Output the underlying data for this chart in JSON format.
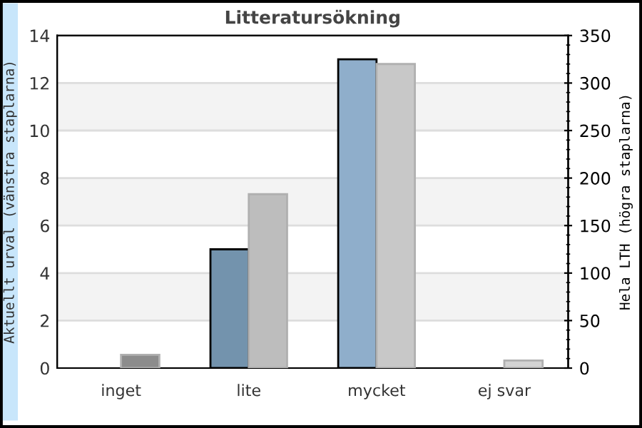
{
  "chart_data": {
    "type": "bar",
    "title": "Litteratursökning",
    "categories": [
      "inget",
      "lite",
      "mycket",
      "ej svar"
    ],
    "ylabel": "Aktuellt urval (vänstra staplarna)",
    "y2label": "Hela LTH (högra staplarna)",
    "series": [
      {
        "axis": "y",
        "colors": [
          "#7393ad",
          "#7393ad",
          "#8faecb",
          "#8faecb"
        ],
        "values": [
          0,
          5,
          13,
          0
        ]
      },
      {
        "axis": "y2",
        "colors": [
          "#8c8c8c",
          "#bdbdbd",
          "#c8c8c8",
          "#d3d3d3"
        ],
        "values": [
          14,
          183,
          320,
          8
        ]
      }
    ],
    "ylim": [
      0,
      14
    ],
    "yticks": [
      0,
      2,
      4,
      6,
      8,
      10,
      12,
      14
    ],
    "y2lim": [
      0,
      350
    ],
    "y2ticks": [
      0,
      50,
      100,
      150,
      200,
      250,
      300,
      350
    ],
    "grid": "y",
    "bands": [
      {
        "axis": "y",
        "from": 2,
        "to": 4,
        "color": "#f3f3f3"
      },
      {
        "axis": "y",
        "from": 6,
        "to": 8,
        "color": "#f3f3f3"
      },
      {
        "axis": "y",
        "from": 10,
        "to": 12,
        "color": "#f3f3f3"
      }
    ]
  }
}
